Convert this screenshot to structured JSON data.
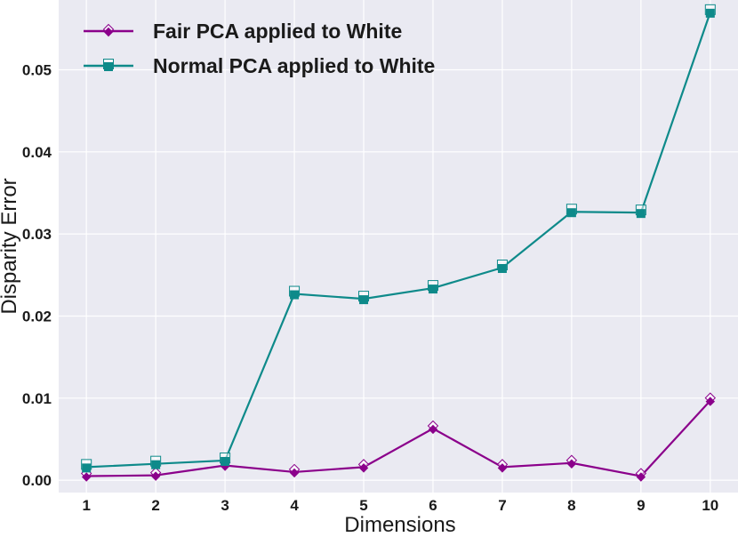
{
  "chart_data": {
    "type": "line",
    "x": [
      1,
      2,
      3,
      4,
      5,
      6,
      7,
      8,
      9,
      10
    ],
    "xlabel": "Dimensions",
    "ylabel": "Disparity Error",
    "xlim": [
      0.6,
      10.4
    ],
    "ylim": [
      -0.0015,
      0.0585
    ],
    "yticks": [
      0.0,
      0.01,
      0.02,
      0.03,
      0.04,
      0.05
    ],
    "ytick_labels": [
      "0.00",
      "0.01",
      "0.02",
      "0.03",
      "0.04",
      "0.05"
    ],
    "xtick_labels": [
      "1",
      "2",
      "3",
      "4",
      "5",
      "6",
      "7",
      "8",
      "9",
      "10"
    ],
    "grid": true,
    "legend_position": "top-left",
    "series": [
      {
        "name": "Fair PCA applied to White",
        "color": "#8b008b",
        "marker": "diamond",
        "values": [
          0.0005,
          0.0006,
          0.0018,
          0.001,
          0.0016,
          0.0063,
          0.0016,
          0.0021,
          0.0005,
          0.0097
        ]
      },
      {
        "name": "Normal PCA applied to White",
        "color": "#0e8a8a",
        "marker": "square",
        "values": [
          0.0016,
          0.002,
          0.0024,
          0.0227,
          0.0221,
          0.0234,
          0.0259,
          0.0327,
          0.0326,
          0.057
        ]
      }
    ]
  }
}
